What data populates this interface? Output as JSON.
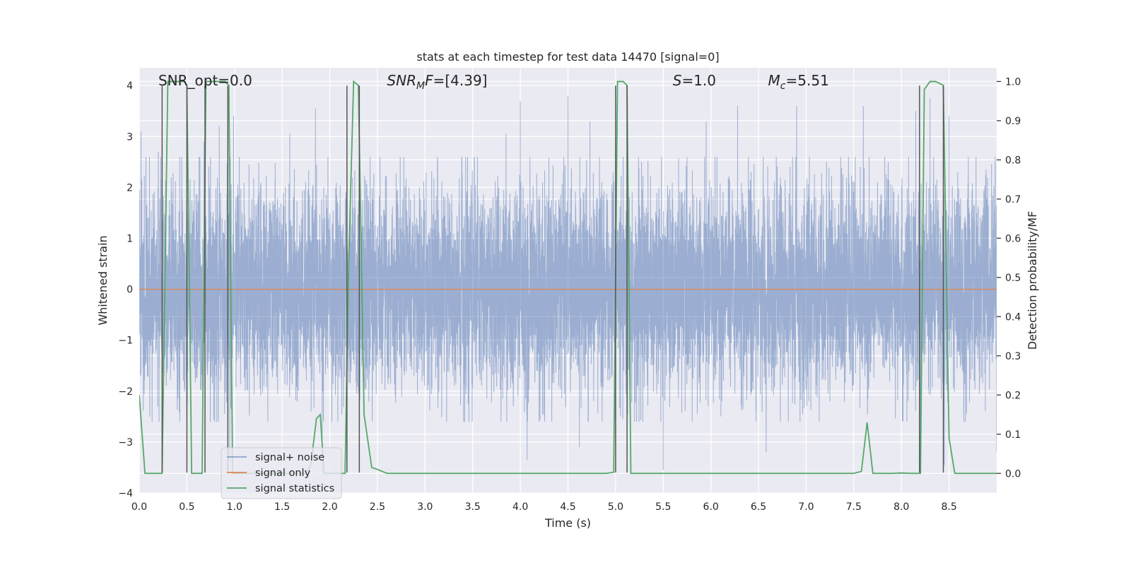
{
  "chart_data": {
    "type": "line",
    "title": "stats at each timestep for test data 14470 [signal=0]",
    "xlabel": "Time (s)",
    "ylabel": "Whitened strain",
    "ylabel_right": "Detection probability/MF",
    "xlim": [
      0,
      9
    ],
    "ylim": [
      -4,
      4.35
    ],
    "ylim_right": [
      -0.05,
      1.035
    ],
    "x_ticks": [
      0.0,
      0.5,
      1.0,
      1.5,
      2.0,
      2.5,
      3.0,
      3.5,
      4.0,
      4.5,
      5.0,
      5.5,
      6.0,
      6.5,
      7.0,
      7.5,
      8.0,
      8.5
    ],
    "x_tick_labels": [
      "0.0",
      "0.5",
      "1.0",
      "1.5",
      "2.0",
      "2.5",
      "3.0",
      "3.5",
      "4.0",
      "4.5",
      "5.0",
      "5.5",
      "6.0",
      "6.5",
      "7.0",
      "7.5",
      "8.0",
      "8.5"
    ],
    "y_ticks": [
      -4,
      -3,
      -2,
      -1,
      0,
      1,
      2,
      3,
      4
    ],
    "y_tick_labels": [
      "−4",
      "−3",
      "−2",
      "−1",
      "0",
      "1",
      "2",
      "3",
      "4"
    ],
    "y_ticks_right": [
      0.0,
      0.1,
      0.2,
      0.3,
      0.4,
      0.5,
      0.6,
      0.7,
      0.8,
      0.9,
      1.0
    ],
    "y_tick_labels_right": [
      "0.0",
      "0.1",
      "0.2",
      "0.3",
      "0.4",
      "0.5",
      "0.6",
      "0.7",
      "0.8",
      "0.9",
      "1.0"
    ],
    "grid": true,
    "legend_position": "lower-left",
    "annotations": [
      {
        "parts": [
          {
            "text": "SNR_opt=0.0",
            "italic": false
          }
        ],
        "x": 0.2
      },
      {
        "parts": [
          {
            "text": "SNR",
            "italic": true
          },
          {
            "text": "M",
            "italic": true,
            "sub": true
          },
          {
            "text": "F",
            "italic": true
          },
          {
            "text": "=[4.39]",
            "italic": false
          }
        ],
        "x": 2.6
      },
      {
        "parts": [
          {
            "text": "S",
            "italic": true
          },
          {
            "text": "=1.0",
            "italic": false
          }
        ],
        "x": 5.6
      },
      {
        "parts": [
          {
            "text": "M",
            "italic": true
          },
          {
            "text": "c",
            "italic": true,
            "sub": true
          },
          {
            "text": "=5.51",
            "italic": false
          }
        ],
        "x": 6.6
      }
    ],
    "series": [
      {
        "name": "signal+ noise",
        "color": "#4c72b0",
        "axis": "left",
        "kind": "noise",
        "sample_rate": 1024,
        "sigma": 1.0,
        "peaks": [
          [
            0.02,
            3.1
          ],
          [
            0.2,
            2.7
          ],
          [
            0.68,
            2.9
          ],
          [
            0.84,
            3.2
          ],
          [
            0.99,
            3.4
          ],
          [
            1.85,
            3.55
          ],
          [
            1.58,
            3.05
          ],
          [
            3.85,
            3.05
          ],
          [
            4.0,
            3.7
          ],
          [
            4.5,
            3.8
          ],
          [
            4.73,
            3.3
          ],
          [
            5.95,
            3.3
          ],
          [
            6.28,
            3.6
          ],
          [
            6.9,
            3.6
          ],
          [
            7.6,
            3.6
          ],
          [
            8.15,
            3.5
          ],
          [
            8.3,
            3.75
          ],
          [
            8.5,
            3.4
          ],
          [
            9.0,
            3.1
          ]
        ],
        "troughs": [
          [
            1.92,
            -3.6
          ],
          [
            4.07,
            -3.35
          ],
          [
            5.5,
            -3.55
          ],
          [
            8.2,
            -3.4
          ],
          [
            8.45,
            -3.45
          ],
          [
            0.95,
            -3.4
          ],
          [
            4.62,
            -3.1
          ],
          [
            6.58,
            -3.2
          ],
          [
            9.0,
            -3.2
          ]
        ]
      },
      {
        "name": "signal only",
        "color": "#dd8452",
        "axis": "left",
        "kind": "line",
        "x": [
          0,
          9
        ],
        "y": [
          0,
          0
        ]
      },
      {
        "name": "signal statistics",
        "color": "#55a868",
        "axis": "right",
        "kind": "line",
        "x": [
          0.0,
          0.06,
          0.12,
          0.18,
          0.24,
          0.3,
          0.36,
          0.42,
          0.48,
          0.5,
          0.55,
          0.6,
          0.66,
          0.7,
          0.75,
          0.8,
          0.86,
          0.9,
          0.94,
          0.98,
          1.02,
          1.08,
          1.14,
          1.2,
          1.26,
          1.32,
          1.38,
          1.44,
          1.5,
          1.56,
          1.62,
          1.68,
          1.74,
          1.8,
          1.86,
          1.9,
          1.94,
          1.98,
          2.04,
          2.1,
          2.16,
          2.2,
          2.25,
          2.3,
          2.36,
          2.44,
          2.5,
          2.6,
          2.7,
          2.8,
          2.9,
          3.0,
          3.5,
          4.0,
          4.5,
          4.9,
          4.98,
          5.02,
          5.08,
          5.12,
          5.16,
          5.2,
          5.3,
          5.5,
          6.0,
          6.5,
          7.0,
          7.5,
          7.58,
          7.64,
          7.7,
          7.76,
          7.82,
          7.9,
          8.0,
          8.1,
          8.2,
          8.24,
          8.3,
          8.36,
          8.44,
          8.5,
          8.56,
          8.7,
          9.0
        ],
        "y": [
          0.2,
          0.0,
          0.0,
          0.0,
          0.0,
          1.0,
          1.0,
          1.0,
          1.0,
          0.99,
          0.0,
          0.0,
          0.0,
          1.0,
          1.0,
          1.0,
          1.0,
          1.0,
          0.99,
          0.0,
          0.0,
          0.0,
          0.0,
          0.0,
          0.0,
          0.0,
          0.0,
          0.0,
          0.0,
          0.0,
          0.0,
          0.0,
          0.0,
          0.02,
          0.14,
          0.15,
          0.0,
          0.0,
          0.0,
          0.0,
          0.0,
          0.55,
          1.0,
          0.99,
          0.15,
          0.015,
          0.01,
          0.0,
          0.0,
          0.0,
          0.0,
          0.0,
          0.0,
          0.0,
          0.0,
          0.0,
          0.003,
          1.0,
          1.0,
          0.99,
          0.0,
          0.0,
          0.0,
          0.0,
          0.0,
          0.0,
          0.0,
          0.0,
          0.005,
          0.13,
          0.0,
          0.0,
          0.0,
          0.0,
          0.001,
          0.0,
          0.0,
          0.98,
          1.0,
          1.0,
          0.99,
          0.09,
          0.0,
          0.0,
          0.0
        ]
      }
    ],
    "vertical_lines": {
      "color": "#555555",
      "x": [
        0.24,
        0.5,
        0.69,
        0.93,
        2.18,
        2.31,
        5.0,
        5.12,
        8.19,
        8.44
      ],
      "y_range": [
        -3.6,
        4.0
      ]
    }
  }
}
